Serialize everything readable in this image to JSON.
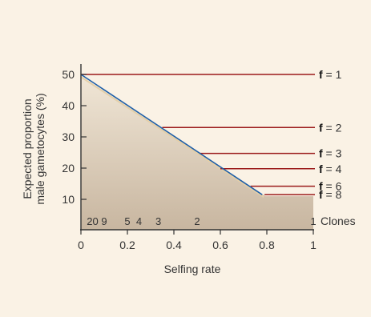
{
  "chart_data": {
    "type": "line",
    "xlabel": "Selfing rate",
    "ylabel_lines": [
      "Expected proportion",
      "male gametocytes (%)"
    ],
    "xlim": [
      0,
      1
    ],
    "ylim": [
      0,
      52
    ],
    "x_ticks": [
      0,
      0.2,
      0.4,
      0.6,
      0.8,
      1
    ],
    "x_tick_labels": [
      "0",
      "0.2",
      "0.4",
      "0.6",
      "0.8",
      "1"
    ],
    "y_ticks": [
      10,
      20,
      30,
      40,
      50
    ],
    "y_tick_labels": [
      "10",
      "20",
      "30",
      "40",
      "50"
    ],
    "clones_label": "Clones",
    "clone_ticks": [
      {
        "x": 0.05,
        "label": "20"
      },
      {
        "x": 0.1,
        "label": "9"
      },
      {
        "x": 0.2,
        "label": "5"
      },
      {
        "x": 0.25,
        "label": "4"
      },
      {
        "x": 0.333,
        "label": "3"
      },
      {
        "x": 0.5,
        "label": "2"
      },
      {
        "x": 1.0,
        "label": "1"
      }
    ],
    "diagonal_line": {
      "x": [
        0,
        0.78
      ],
      "y": [
        50,
        11.5
      ],
      "color": "#1f5fa8"
    },
    "f_lines": [
      {
        "f_prefix": "f",
        "label": " = 1",
        "x_start": 0.0,
        "y": 50.0
      },
      {
        "f_prefix": "f",
        "label": " = 2",
        "x_start": 0.35,
        "y": 33.0
      },
      {
        "f_prefix": "f",
        "label": " = 3",
        "x_start": 0.51,
        "y": 24.7
      },
      {
        "f_prefix": "f",
        "label": " = 4",
        "x_start": 0.6,
        "y": 19.8
      },
      {
        "f_prefix": "f",
        "label": " = 6",
        "x_start": 0.73,
        "y": 14.2
      },
      {
        "f_prefix": "f",
        "label": " = 8",
        "x_start": 0.79,
        "y": 11.5
      }
    ],
    "grid": false,
    "colors": {
      "hline": "#9b1b1b",
      "diagonal": "#1f5fa8",
      "shade_top": "#f0e6d6",
      "shade_bottom": "#c8b6a0",
      "background": "#faf2e5",
      "axis": "#333333"
    }
  }
}
